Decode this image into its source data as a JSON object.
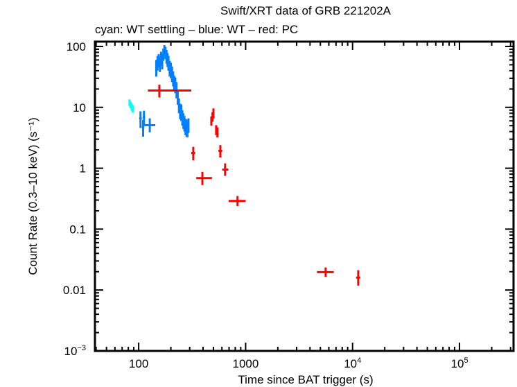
{
  "chart_data": {
    "type": "scatter",
    "title": "Swift/XRT data of GRB 221202A",
    "subtitle": "cyan: WT settling – blue: WT – red: PC",
    "xlabel": "Time since BAT trigger (s)",
    "ylabel": "Count Rate (0.3–10 keV) (s⁻¹)",
    "xscale": "log",
    "yscale": "log",
    "xlim": [
      39,
      320000
    ],
    "ylim": [
      0.001,
      120
    ],
    "x_ticks": [
      {
        "value": 100,
        "label": "100"
      },
      {
        "value": 1000,
        "label": "1000"
      },
      {
        "value": 10000,
        "label": "10",
        "sup": "4"
      },
      {
        "value": 100000,
        "label": "10",
        "sup": "5"
      }
    ],
    "y_ticks": [
      {
        "value": 100,
        "label": "100"
      },
      {
        "value": 10,
        "label": "10"
      },
      {
        "value": 1,
        "label": "1"
      },
      {
        "value": 0.1,
        "label": "0.1"
      },
      {
        "value": 0.01,
        "label": "0.01"
      },
      {
        "value": 0.001,
        "label": "10",
        "sup": "−3"
      }
    ],
    "grid": false,
    "series": [
      {
        "name": "WT settling",
        "color": "#00ffff",
        "points": [
          {
            "x": 82,
            "xlo": 81,
            "xhi": 83,
            "y": 12.0,
            "ylo": 10.5,
            "yhi": 13.5
          },
          {
            "x": 84,
            "xlo": 83,
            "xhi": 85,
            "y": 11.0,
            "ylo": 9.6,
            "yhi": 12.5
          },
          {
            "x": 86,
            "xlo": 85,
            "xhi": 87,
            "y": 10.2,
            "ylo": 8.8,
            "yhi": 11.6
          },
          {
            "x": 88,
            "xlo": 87,
            "xhi": 89,
            "y": 9.5,
            "ylo": 8.2,
            "yhi": 10.8
          }
        ]
      },
      {
        "name": "WT",
        "color": "#0080ff",
        "points": [
          {
            "x": 104,
            "xlo": 101,
            "xhi": 107,
            "y": 6.6,
            "ylo": 4.6,
            "yhi": 8.6
          },
          {
            "x": 110,
            "xlo": 107,
            "xhi": 113,
            "y": 4.7,
            "ylo": 3.3,
            "yhi": 6.2
          },
          {
            "x": 112,
            "xlo": 109,
            "xhi": 115,
            "y": 6.9,
            "ylo": 5.0,
            "yhi": 8.8
          },
          {
            "x": 127,
            "xlo": 113,
            "xhi": 143,
            "y": 5.1,
            "ylo": 3.9,
            "yhi": 6.6
          },
          {
            "x": 146,
            "xlo": 144,
            "xhi": 148,
            "y": 45,
            "ylo": 32,
            "yhi": 60
          },
          {
            "x": 150,
            "xlo": 148,
            "xhi": 152,
            "y": 55,
            "ylo": 40,
            "yhi": 70
          },
          {
            "x": 154,
            "xlo": 152,
            "xhi": 156,
            "y": 60,
            "ylo": 45,
            "yhi": 75
          },
          {
            "x": 158,
            "xlo": 156,
            "xhi": 160,
            "y": 52,
            "ylo": 38,
            "yhi": 68
          },
          {
            "x": 162,
            "xlo": 160,
            "xhi": 164,
            "y": 65,
            "ylo": 48,
            "yhi": 82
          },
          {
            "x": 166,
            "xlo": 164,
            "xhi": 168,
            "y": 58,
            "ylo": 42,
            "yhi": 74
          },
          {
            "x": 170,
            "xlo": 168,
            "xhi": 172,
            "y": 75,
            "ylo": 58,
            "yhi": 92
          },
          {
            "x": 174,
            "xlo": 172,
            "xhi": 176,
            "y": 88,
            "ylo": 70,
            "yhi": 105
          },
          {
            "x": 178,
            "xlo": 176,
            "xhi": 180,
            "y": 80,
            "ylo": 62,
            "yhi": 98
          },
          {
            "x": 182,
            "xlo": 180,
            "xhi": 184,
            "y": 70,
            "ylo": 52,
            "yhi": 88
          },
          {
            "x": 186,
            "xlo": 184,
            "xhi": 188,
            "y": 62,
            "ylo": 46,
            "yhi": 78
          },
          {
            "x": 190,
            "xlo": 188,
            "xhi": 192,
            "y": 55,
            "ylo": 40,
            "yhi": 70
          },
          {
            "x": 195,
            "xlo": 192,
            "xhi": 198,
            "y": 45,
            "ylo": 32,
            "yhi": 58
          },
          {
            "x": 200,
            "xlo": 198,
            "xhi": 202,
            "y": 42,
            "ylo": 30,
            "yhi": 54
          },
          {
            "x": 205,
            "xlo": 202,
            "xhi": 208,
            "y": 36,
            "ylo": 26,
            "yhi": 47
          },
          {
            "x": 210,
            "xlo": 208,
            "xhi": 212,
            "y": 30,
            "ylo": 22,
            "yhi": 39
          },
          {
            "x": 215,
            "xlo": 212,
            "xhi": 218,
            "y": 26,
            "ylo": 19,
            "yhi": 33
          },
          {
            "x": 220,
            "xlo": 218,
            "xhi": 222,
            "y": 24,
            "ylo": 17,
            "yhi": 31
          },
          {
            "x": 226,
            "xlo": 222,
            "xhi": 230,
            "y": 20,
            "ylo": 14,
            "yhi": 26
          },
          {
            "x": 232,
            "xlo": 230,
            "xhi": 234,
            "y": 15,
            "ylo": 11,
            "yhi": 19
          },
          {
            "x": 238,
            "xlo": 234,
            "xhi": 242,
            "y": 11,
            "ylo": 8,
            "yhi": 14
          },
          {
            "x": 244,
            "xlo": 242,
            "xhi": 246,
            "y": 9.0,
            "ylo": 6.4,
            "yhi": 11.5
          },
          {
            "x": 250,
            "xlo": 246,
            "xhi": 254,
            "y": 8.6,
            "ylo": 6.0,
            "yhi": 11.2
          },
          {
            "x": 256,
            "xlo": 254,
            "xhi": 258,
            "y": 7.0,
            "ylo": 5.0,
            "yhi": 9.0
          },
          {
            "x": 262,
            "xlo": 258,
            "xhi": 266,
            "y": 6.2,
            "ylo": 4.4,
            "yhi": 8.0
          },
          {
            "x": 268,
            "xlo": 266,
            "xhi": 270,
            "y": 5.6,
            "ylo": 4.0,
            "yhi": 7.2
          },
          {
            "x": 274,
            "xlo": 270,
            "xhi": 278,
            "y": 5.0,
            "ylo": 3.5,
            "yhi": 6.5
          },
          {
            "x": 280,
            "xlo": 278,
            "xhi": 282,
            "y": 4.8,
            "ylo": 3.3,
            "yhi": 6.3
          },
          {
            "x": 286,
            "xlo": 282,
            "xhi": 290,
            "y": 4.6,
            "ylo": 3.2,
            "yhi": 6.0
          },
          {
            "x": 292,
            "xlo": 290,
            "xhi": 294,
            "y": 5.2,
            "ylo": 3.8,
            "yhi": 6.6
          }
        ]
      },
      {
        "name": "PC",
        "color": "#ff0000",
        "points": [
          {
            "x": 156,
            "xlo": 122,
            "xhi": 310,
            "y": 18.9,
            "ylo": 14.5,
            "yhi": 23.5
          },
          {
            "x": 324,
            "xlo": 310,
            "xhi": 338,
            "y": 1.78,
            "ylo": 1.35,
            "yhi": 2.25
          },
          {
            "x": 394,
            "xlo": 345,
            "xhi": 485,
            "y": 0.69,
            "ylo": 0.53,
            "yhi": 0.87
          },
          {
            "x": 478,
            "xlo": 470,
            "xhi": 486,
            "y": 6.0,
            "ylo": 5.0,
            "yhi": 7.1
          },
          {
            "x": 490,
            "xlo": 486,
            "xhi": 494,
            "y": 7.0,
            "ylo": 5.8,
            "yhi": 8.3
          },
          {
            "x": 500,
            "xlo": 494,
            "xhi": 506,
            "y": 8.0,
            "ylo": 6.6,
            "yhi": 9.6
          },
          {
            "x": 530,
            "xlo": 522,
            "xhi": 538,
            "y": 4.3,
            "ylo": 3.5,
            "yhi": 5.1
          },
          {
            "x": 545,
            "xlo": 538,
            "xhi": 552,
            "y": 3.9,
            "ylo": 3.2,
            "yhi": 4.7
          },
          {
            "x": 580,
            "xlo": 556,
            "xhi": 604,
            "y": 1.93,
            "ylo": 1.5,
            "yhi": 2.4
          },
          {
            "x": 643,
            "xlo": 604,
            "xhi": 690,
            "y": 0.95,
            "ylo": 0.75,
            "yhi": 1.2
          },
          {
            "x": 840,
            "xlo": 695,
            "xhi": 1000,
            "y": 0.29,
            "ylo": 0.24,
            "yhi": 0.35
          },
          {
            "x": 5600,
            "xlo": 4650,
            "xhi": 6670,
            "y": 0.0197,
            "ylo": 0.0165,
            "yhi": 0.0235
          },
          {
            "x": 11300,
            "xlo": 10800,
            "xhi": 11800,
            "y": 0.016,
            "ylo": 0.0118,
            "yhi": 0.0212
          }
        ]
      }
    ]
  }
}
